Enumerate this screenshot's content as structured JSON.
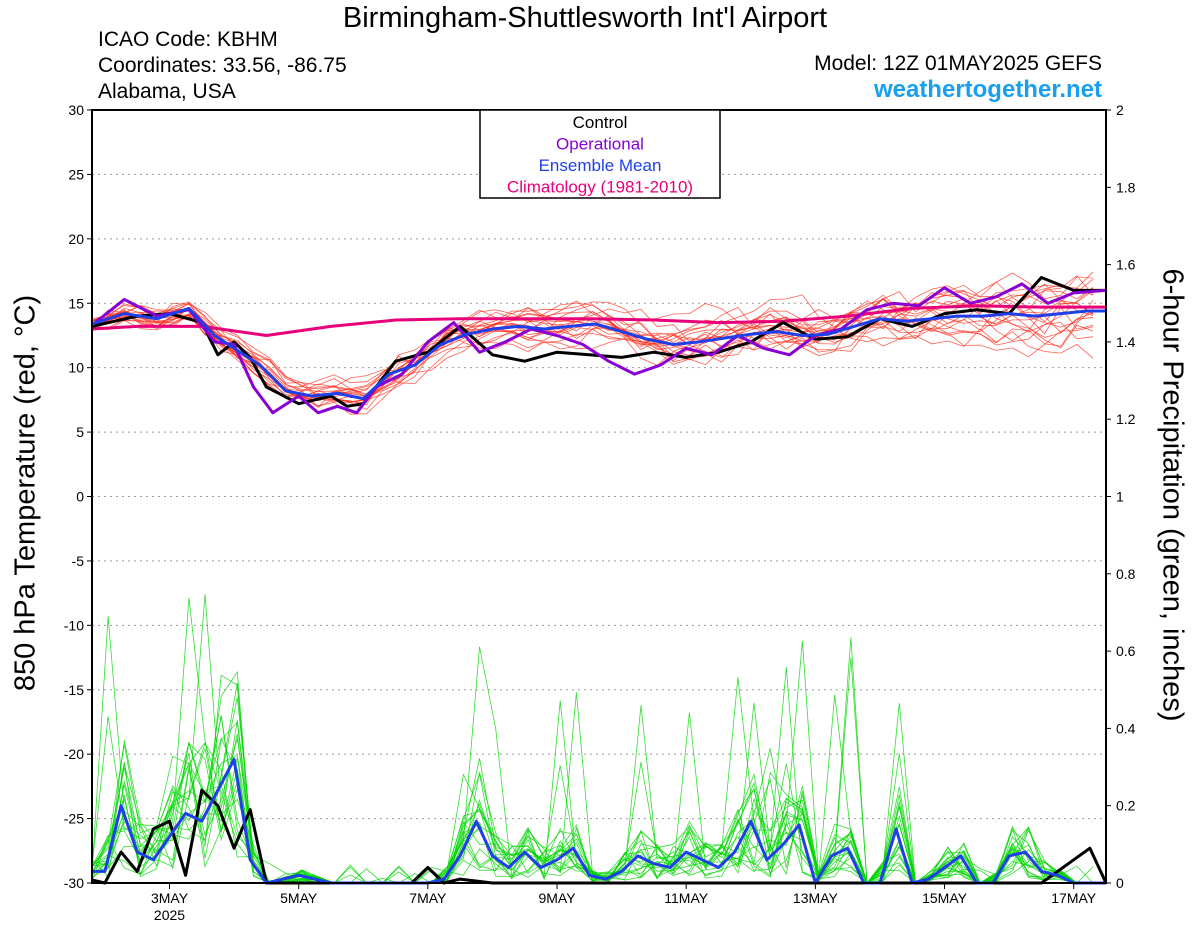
{
  "header": {
    "title": "Birmingham-Shuttlesworth Int'l Airport",
    "icao": "ICAO Code: KBHM",
    "coordinates": "Coordinates: 33.56, -86.75",
    "region": "Alabama, USA",
    "model": "Model: 12Z 01MAY2025 GEFS",
    "site": "weathertogether.net"
  },
  "colors": {
    "control": "#000000",
    "operational": "#8a00d4",
    "ensemble_mean": "#1f3fe8",
    "climatology": "#e8007a",
    "members_temp": "#ff2a1a",
    "members_precip": "#00d400",
    "site": "#1a9ff0"
  },
  "chart_data": {
    "type": "line",
    "ylabel": "850 hPa Temperature (red, °C)",
    "y2label": "6-hour Precipitation (green, inches)",
    "ylim": [
      -30,
      30
    ],
    "y2lim": [
      0,
      2
    ],
    "yticks": [
      30,
      25,
      20,
      15,
      10,
      5,
      0,
      -5,
      -10,
      -15,
      -20,
      -25,
      -30
    ],
    "y2ticks": [
      2,
      1.8,
      1.6,
      1.4,
      1.2,
      1,
      0.8,
      0.6,
      0.4,
      0.2,
      0
    ],
    "xlim_days": [
      1.8,
      17.5
    ],
    "x_unit": "day of May 2025",
    "x_ticks": [
      {
        "day": 3,
        "label": "3MAY",
        "sub": "2025"
      },
      {
        "day": 5,
        "label": "5MAY",
        "sub": ""
      },
      {
        "day": 7,
        "label": "7MAY",
        "sub": ""
      },
      {
        "day": 9,
        "label": "9MAY",
        "sub": ""
      },
      {
        "day": 11,
        "label": "11MAY",
        "sub": ""
      },
      {
        "day": 13,
        "label": "13MAY",
        "sub": ""
      },
      {
        "day": 15,
        "label": "15MAY",
        "sub": ""
      },
      {
        "day": 17,
        "label": "17MAY",
        "sub": ""
      }
    ],
    "grid": "dotted-horizontal",
    "legend": {
      "placement": "top-center",
      "entries": [
        "Control",
        "Operational",
        "Ensemble Mean",
        "Climatology (1981-2010)"
      ]
    },
    "series": [
      {
        "name": "Climatology (1981-2010)",
        "axis": "temp",
        "color": "#e8007a",
        "width": 3,
        "x": [
          1.8,
          2.5,
          3.5,
          4.5,
          5.5,
          6.5,
          7.5,
          8.5,
          9.5,
          10.5,
          11.5,
          12.5,
          13.5,
          14.5,
          15.5,
          16.5,
          17.5
        ],
        "y": [
          13.0,
          13.2,
          13.2,
          12.5,
          13.2,
          13.7,
          13.8,
          13.8,
          13.8,
          13.7,
          13.5,
          13.6,
          14.0,
          14.6,
          14.8,
          14.7,
          14.7
        ]
      },
      {
        "name": "Control",
        "axis": "temp",
        "color": "#000000",
        "width": 3,
        "x": [
          1.8,
          2.5,
          3.0,
          3.5,
          3.75,
          4.0,
          4.25,
          4.5,
          5.0,
          5.5,
          5.75,
          6.0,
          6.5,
          7.0,
          7.5,
          8.0,
          8.5,
          9.0,
          9.5,
          10.0,
          10.5,
          11.0,
          11.5,
          12.0,
          12.5,
          13.0,
          13.5,
          14.0,
          14.5,
          15.0,
          15.5,
          16.0,
          16.5,
          17.0,
          17.5
        ],
        "y": [
          13.2,
          14.0,
          14.2,
          13.5,
          11.0,
          12.0,
          10.8,
          8.5,
          7.2,
          7.8,
          7.0,
          7.2,
          10.5,
          11.2,
          13.2,
          11.0,
          10.5,
          11.2,
          11.0,
          10.8,
          11.2,
          10.8,
          11.2,
          12.0,
          13.5,
          12.2,
          12.4,
          13.8,
          13.2,
          14.2,
          14.5,
          14.2,
          17.0,
          16.0,
          16.0
        ]
      },
      {
        "name": "Operational",
        "axis": "temp",
        "color": "#8a00d4",
        "width": 3,
        "x": [
          1.8,
          2.3,
          2.8,
          3.3,
          3.7,
          4.0,
          4.3,
          4.6,
          5.0,
          5.3,
          5.6,
          5.9,
          6.2,
          6.6,
          7.0,
          7.4,
          7.8,
          8.2,
          8.6,
          9.0,
          9.4,
          9.8,
          10.2,
          10.6,
          11.0,
          11.4,
          11.8,
          12.2,
          12.6,
          13.0,
          13.4,
          13.8,
          14.2,
          14.6,
          15.0,
          15.4,
          15.8,
          16.2,
          16.6,
          17.0,
          17.5
        ],
        "y": [
          13.3,
          15.3,
          14.0,
          14.5,
          12.0,
          11.8,
          8.5,
          6.5,
          7.8,
          6.5,
          7.0,
          6.5,
          8.5,
          9.5,
          12.0,
          13.5,
          11.2,
          12.0,
          13.0,
          12.5,
          11.8,
          10.5,
          9.5,
          10.2,
          11.5,
          11.0,
          12.5,
          11.5,
          11.0,
          12.5,
          13.0,
          14.5,
          15.0,
          14.8,
          16.2,
          15.0,
          15.5,
          16.5,
          15.0,
          15.8,
          16.0
        ]
      },
      {
        "name": "Ensemble Mean",
        "axis": "temp",
        "color": "#1f3fe8",
        "width": 3,
        "x": [
          1.8,
          2.3,
          2.8,
          3.3,
          3.7,
          4.0,
          4.4,
          4.8,
          5.2,
          5.6,
          6.0,
          6.4,
          6.8,
          7.2,
          7.6,
          8.0,
          8.4,
          8.8,
          9.2,
          9.6,
          10.0,
          10.4,
          10.8,
          11.2,
          11.6,
          12.0,
          12.4,
          12.8,
          13.2,
          13.6,
          14.0,
          14.4,
          14.8,
          15.2,
          15.6,
          16.0,
          16.4,
          16.8,
          17.2,
          17.5
        ],
        "y": [
          13.4,
          14.2,
          13.8,
          14.6,
          12.5,
          11.5,
          10.2,
          8.2,
          7.8,
          8.0,
          7.6,
          9.5,
          10.2,
          11.8,
          12.6,
          13.0,
          13.2,
          13.0,
          13.2,
          13.4,
          12.8,
          12.2,
          11.8,
          12.0,
          12.3,
          12.6,
          12.8,
          12.5,
          12.6,
          13.2,
          13.8,
          13.6,
          13.8,
          14.0,
          14.0,
          14.2,
          14.0,
          14.2,
          14.4,
          14.4
        ]
      },
      {
        "name": "Control",
        "axis": "precip",
        "color": "#000000",
        "width": 3,
        "x": [
          1.8,
          2.0,
          2.25,
          2.5,
          2.75,
          3.0,
          3.25,
          3.5,
          3.75,
          4.0,
          4.25,
          4.5,
          5.0,
          6.0,
          6.75,
          7.0,
          7.25,
          7.5,
          8.0,
          13.0,
          14.0,
          16.5,
          17.0,
          17.25,
          17.5
        ],
        "y": [
          0.008,
          0.0,
          0.08,
          0.03,
          0.14,
          0.16,
          0.02,
          0.24,
          0.2,
          0.09,
          0.19,
          0.0,
          0.0,
          0.0,
          0.0,
          0.04,
          0.0,
          0.01,
          0.0,
          0.0,
          0.0,
          0.0,
          0.06,
          0.09,
          0.0
        ]
      },
      {
        "name": "Ensemble Mean",
        "axis": "precip",
        "color": "#1f3fe8",
        "width": 3,
        "x": [
          1.8,
          2.0,
          2.25,
          2.5,
          2.75,
          3.0,
          3.25,
          3.5,
          3.75,
          4.0,
          4.25,
          4.5,
          5.0,
          5.5,
          6.0,
          7.0,
          7.25,
          7.5,
          7.75,
          8.0,
          8.25,
          8.5,
          8.75,
          9.0,
          9.25,
          9.5,
          9.75,
          10.0,
          10.25,
          10.5,
          10.75,
          11.0,
          11.25,
          11.5,
          11.75,
          12.0,
          12.25,
          12.5,
          12.75,
          13.0,
          13.25,
          13.5,
          13.75,
          14.0,
          14.25,
          14.5,
          14.75,
          15.0,
          15.25,
          15.5,
          15.75,
          16.0,
          16.25,
          16.5,
          16.75,
          17.0,
          17.25,
          17.5
        ],
        "y": [
          0.03,
          0.03,
          0.2,
          0.08,
          0.06,
          0.12,
          0.18,
          0.16,
          0.24,
          0.32,
          0.06,
          0.0,
          0.02,
          0.0,
          0.0,
          0.0,
          0.01,
          0.07,
          0.16,
          0.07,
          0.04,
          0.08,
          0.04,
          0.06,
          0.09,
          0.02,
          0.01,
          0.03,
          0.07,
          0.05,
          0.04,
          0.08,
          0.06,
          0.04,
          0.08,
          0.16,
          0.06,
          0.1,
          0.15,
          0.0,
          0.07,
          0.09,
          0.0,
          0.0,
          0.14,
          0.0,
          0.01,
          0.04,
          0.07,
          0.0,
          0.0,
          0.07,
          0.08,
          0.03,
          0.02,
          0.0,
          0.0,
          0.0
        ]
      }
    ]
  }
}
